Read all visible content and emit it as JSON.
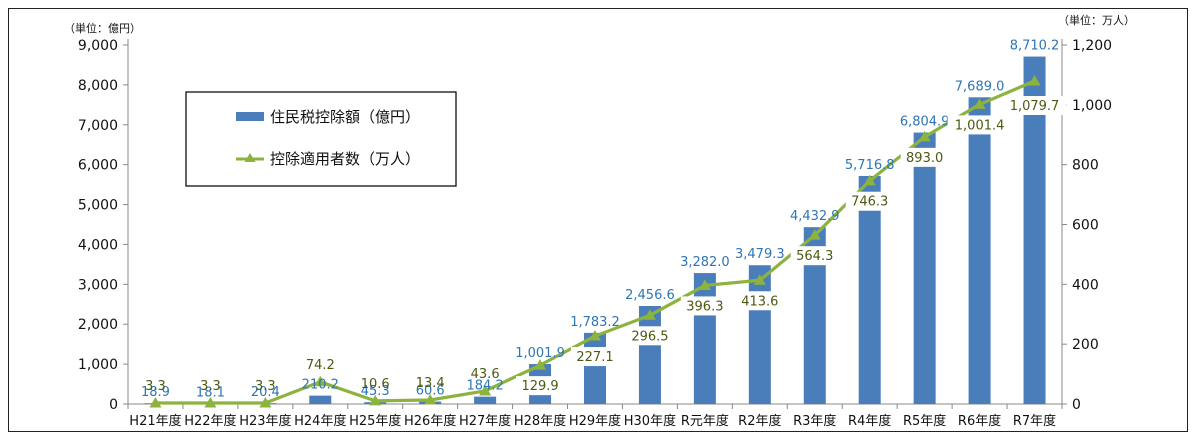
{
  "chart_data": {
    "type": "bar+line",
    "left_unit": "（単位：億円）",
    "right_unit": "（単位：万人）",
    "categories": [
      "H21年度",
      "H22年度",
      "H23年度",
      "H24年度",
      "H25年度",
      "H26年度",
      "H27年度",
      "H28年度",
      "H29年度",
      "H30年度",
      "R元年度",
      "R2年度",
      "R3年度",
      "R4年度",
      "R5年度",
      "R6年度",
      "R7年度"
    ],
    "series": [
      {
        "name": "住民税控除額（億円）",
        "kind": "bar",
        "axis": "left",
        "color": "#4A7EBB",
        "values": [
          18.9,
          18.1,
          20.4,
          210.2,
          45.3,
          60.6,
          184.2,
          1001.9,
          1783.2,
          2456.6,
          3282.0,
          3479.3,
          4432.9,
          5716.8,
          6804.9,
          7689.0,
          8710.2
        ],
        "labels": [
          "18.9",
          "18.1",
          "20.4",
          "210.2",
          "45.3",
          "60.6",
          "184.2",
          "1,001.9",
          "1,783.2",
          "2,456.6",
          "3,282.0",
          "3,479.3",
          "4,432.9",
          "5,716.8",
          "6,804.9",
          "7,689.0",
          "8,710.2"
        ]
      },
      {
        "name": "控除適用者数（万人）",
        "kind": "line",
        "axis": "right",
        "color": "#8DB33F",
        "values": [
          3.3,
          3.3,
          3.3,
          74.2,
          10.6,
          13.4,
          43.6,
          129.9,
          227.1,
          296.5,
          396.3,
          413.6,
          564.3,
          746.3,
          893.0,
          1001.4,
          1079.7
        ],
        "labels": [
          "3.3",
          "3.3",
          "3.3",
          "74.2",
          "10.6",
          "13.4",
          "43.6",
          "129.9",
          "227.1",
          "296.5",
          "396.3",
          "413.6",
          "564.3",
          "746.3",
          "893.0",
          "1,001.4",
          "1,079.7"
        ]
      }
    ],
    "left_axis": {
      "ylim": [
        0,
        9000
      ],
      "ticks": [
        "0",
        "1,000",
        "2,000",
        "3,000",
        "4,000",
        "5,000",
        "6,000",
        "7,000",
        "8,000",
        "9,000"
      ]
    },
    "right_axis": {
      "ylim": [
        0,
        1200
      ],
      "ticks": [
        "0",
        "200",
        "400",
        "600",
        "800",
        "1,000",
        "1,200"
      ]
    },
    "grid": false,
    "legend_position": "top-left"
  }
}
